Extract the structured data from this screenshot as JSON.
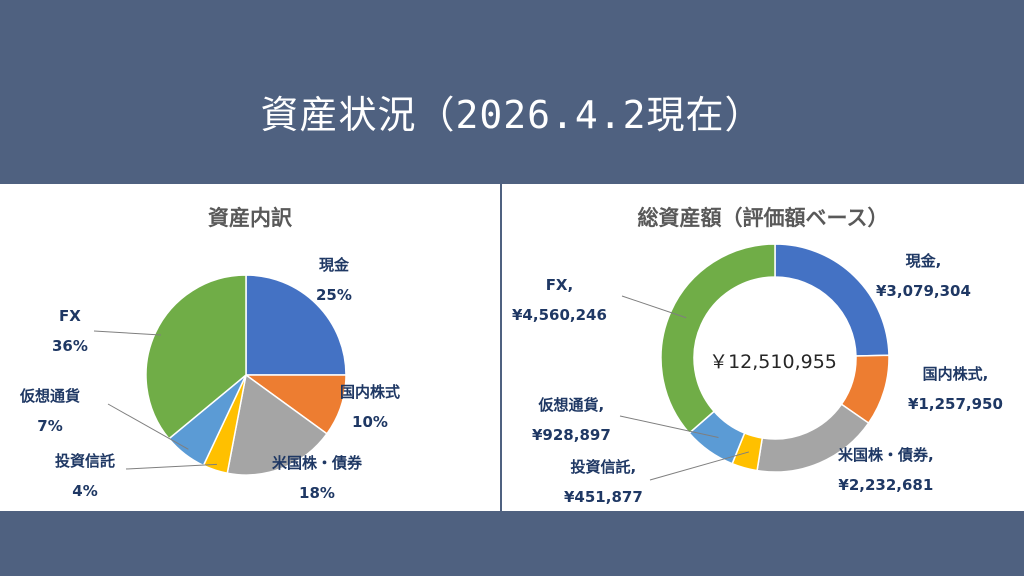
{
  "title": "資産状況（2026.4.2現在）",
  "colors": {
    "cash": "#4472c4",
    "domestic": "#ed7d31",
    "us": "#a5a5a5",
    "trust": "#ffc000",
    "crypto": "#5b9bd5",
    "fx": "#70ad47",
    "label": "#1f3864"
  },
  "chart_data": [
    {
      "type": "pie",
      "title": "資産内訳",
      "categories": [
        "現金",
        "国内株式",
        "米国株・債券",
        "投資信託",
        "仮想通貨",
        "FX"
      ],
      "values": [
        25,
        10,
        18,
        4,
        7,
        36
      ],
      "value_labels": [
        "25%",
        "10%",
        "18%",
        "4%",
        "7%",
        "36%"
      ]
    },
    {
      "type": "pie",
      "subtype": "donut",
      "title": "総資産額（評価額ベース）",
      "center_label": "￥12,510,955",
      "categories": [
        "現金,",
        "国内株式,",
        "米国株・債券,",
        "投資信託,",
        "仮想通貨,",
        "FX,"
      ],
      "values": [
        3079304,
        1257950,
        2232681,
        451877,
        928897,
        4560246
      ],
      "value_labels": [
        "¥3,079,304",
        "¥1,257,950",
        "¥2,232,681",
        "¥451,877",
        "¥928,897",
        "¥4,560,246"
      ]
    }
  ]
}
